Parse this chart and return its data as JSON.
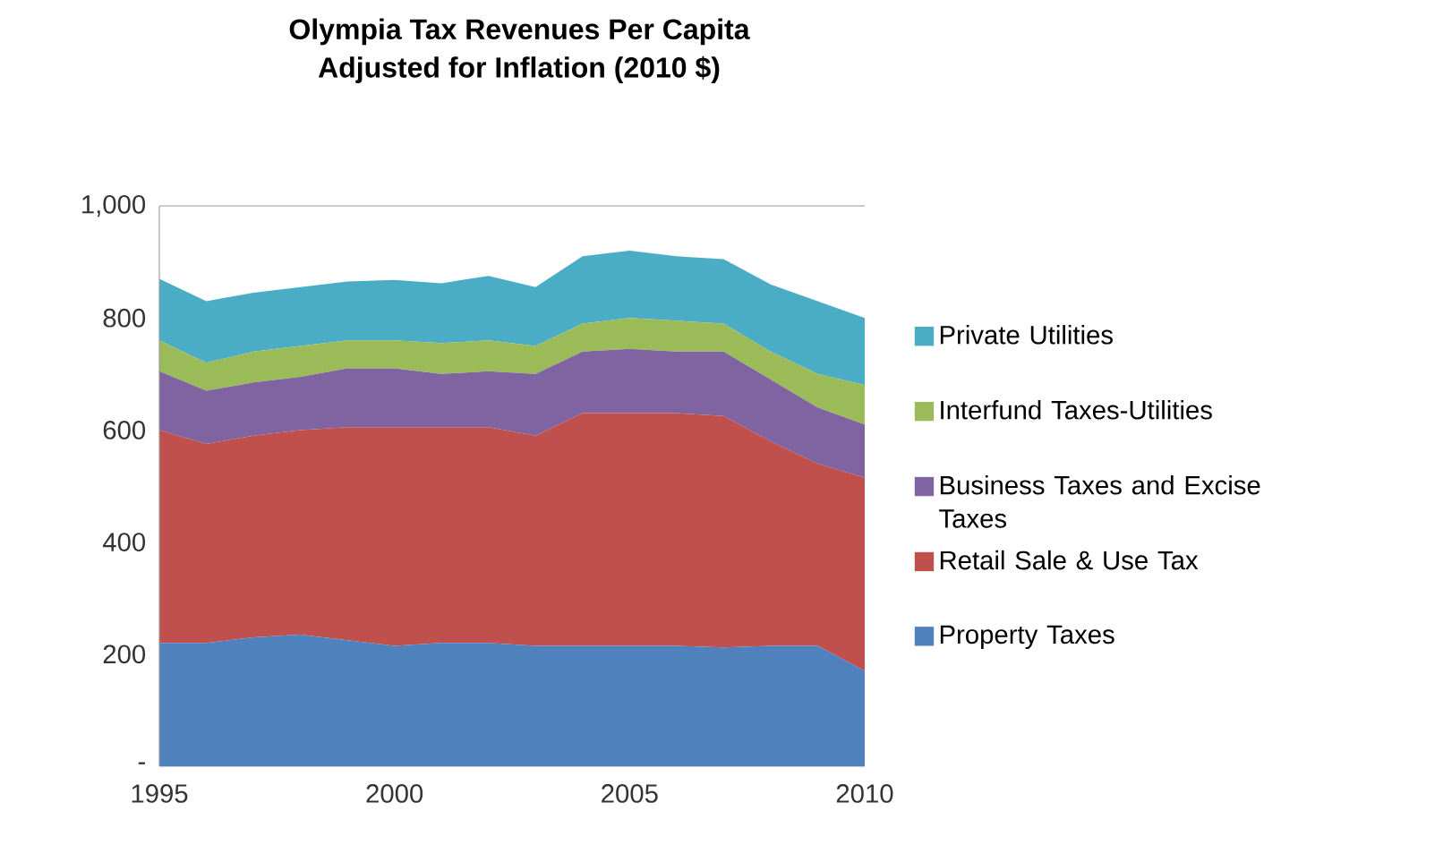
{
  "chart_data": {
    "type": "area",
    "stacked": true,
    "title": "Olympia Tax Revenues Per Capita\nAdjusted for Inflation (2010 $)",
    "x": [
      1995,
      1996,
      1997,
      1998,
      1999,
      2000,
      2001,
      2002,
      2003,
      2004,
      2005,
      2006,
      2007,
      2008,
      2009,
      2010
    ],
    "xlim": [
      1995,
      2010
    ],
    "xticks": [
      1995,
      2000,
      2005,
      2010
    ],
    "ylim": [
      0,
      1000
    ],
    "yticks": [
      {
        "value": 0,
        "label": "-"
      },
      200,
      400,
      600,
      800,
      {
        "value": 1000,
        "label": "1,000"
      }
    ],
    "grid": false,
    "legend": "right",
    "series": [
      {
        "name": "Property Taxes",
        "color": "#4f81bd",
        "values": [
          220,
          220,
          230,
          235,
          225,
          215,
          220,
          220,
          215,
          215,
          215,
          215,
          212,
          215,
          215,
          170
        ]
      },
      {
        "name": "Retail Sale & Use Tax",
        "color": "#c0504d",
        "values": [
          380,
          355,
          360,
          365,
          380,
          390,
          385,
          385,
          375,
          415,
          415,
          415,
          413,
          365,
          325,
          345
        ]
      },
      {
        "name": "Business Taxes and Excise Taxes",
        "color": "#8064a2",
        "values": [
          105,
          95,
          95,
          95,
          105,
          105,
          95,
          100,
          110,
          110,
          115,
          110,
          115,
          110,
          100,
          95
        ]
      },
      {
        "name": "Interfund Taxes-Utilities",
        "color": "#9bbb59",
        "values": [
          55,
          50,
          55,
          55,
          50,
          50,
          55,
          55,
          50,
          50,
          55,
          55,
          50,
          50,
          60,
          70
        ]
      },
      {
        "name": "Private Utilities",
        "color": "#4bacc6",
        "values": [
          110,
          110,
          105,
          105,
          105,
          108,
          107,
          115,
          105,
          120,
          120,
          115,
          115,
          120,
          130,
          120
        ]
      }
    ]
  }
}
